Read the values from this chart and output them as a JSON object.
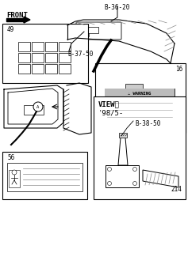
{
  "bg_color": "#ffffff",
  "line_color": "#000000",
  "gray_light": "#cccccc",
  "gray_med": "#aaaaaa",
  "gray_dark": "#555555",
  "label_front": "FRONT",
  "label_b3620": "B-36-20",
  "label_b3750": "B-37-50",
  "label_b3850": "B-38-50",
  "label_16": "16",
  "label_49": "49",
  "label_56": "56",
  "label_214": "214",
  "label_view": "VIEWⒶ",
  "label_year": "'98/5-",
  "label_warning": "⚠ WARNING"
}
